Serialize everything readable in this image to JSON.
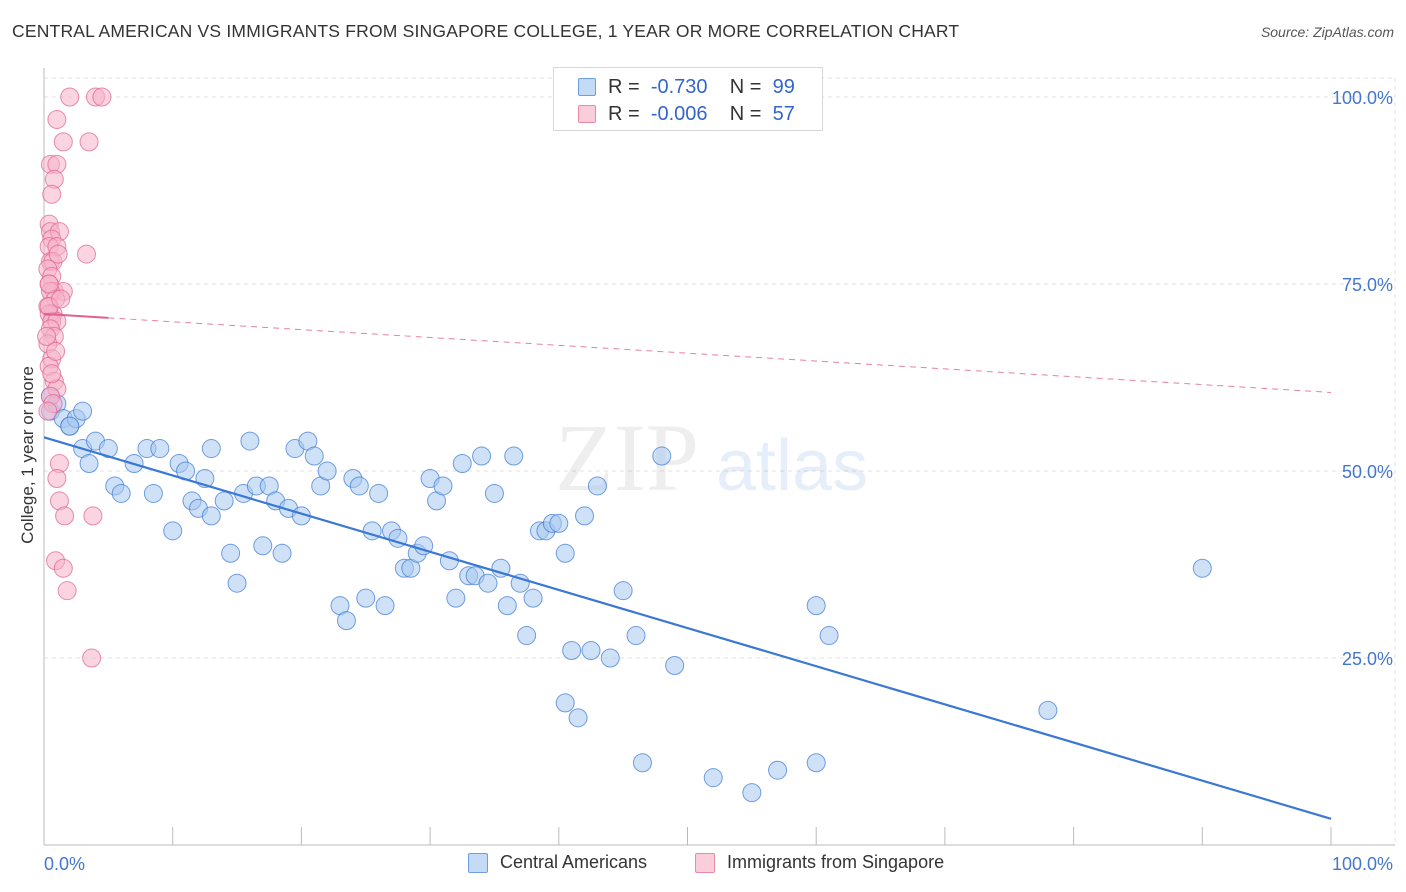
{
  "title": "CENTRAL AMERICAN VS IMMIGRANTS FROM SINGAPORE COLLEGE, 1 YEAR OR MORE CORRELATION CHART",
  "source": "Source: ZipAtlas.com",
  "watermark": {
    "zip": "ZIP",
    "atlas": "atlas"
  },
  "legend": {
    "rows": [
      {
        "r_label": "R =",
        "r_value": "-0.730",
        "n_label": "N =",
        "n_value": "99",
        "color": "#a8c8f0"
      },
      {
        "r_label": "R =",
        "r_value": "-0.006",
        "n_label": "N =",
        "n_value": "57",
        "color": "#f5b3c8"
      }
    ]
  },
  "bottom_legend": [
    "Central Americans",
    "Immigrants from Singapore"
  ],
  "chart_data": {
    "type": "scatter",
    "title": "CENTRAL AMERICAN VS IMMIGRANTS FROM SINGAPORE COLLEGE, 1 YEAR OR MORE CORRELATION CHART",
    "xlabel": "",
    "ylabel": "College, 1 year or more",
    "xlim": [
      0,
      100
    ],
    "ylim": [
      0,
      100
    ],
    "x_tick_labels": [
      "0.0%",
      "100.0%"
    ],
    "y_tick_labels": [
      "100.0%",
      "75.0%",
      "50.0%",
      "25.0%"
    ],
    "y_ticks": [
      100,
      75,
      50,
      25
    ],
    "grid": true,
    "legend_position": "top-center",
    "series": [
      {
        "name": "Central Americans",
        "color": "#3a78d4",
        "fill": "#a8c8f0",
        "r": -0.73,
        "n": 99,
        "trend": {
          "x": [
            0,
            100
          ],
          "y": [
            54.5,
            3.5
          ],
          "style": "solid"
        },
        "points": [
          [
            0.5,
            60
          ],
          [
            0.5,
            58
          ],
          [
            1,
            59
          ],
          [
            1.5,
            57
          ],
          [
            2,
            56
          ],
          [
            2.5,
            57
          ],
          [
            3,
            53
          ],
          [
            3.5,
            51
          ],
          [
            4,
            54
          ],
          [
            5,
            53
          ],
          [
            5.5,
            48
          ],
          [
            6,
            47
          ],
          [
            7,
            51
          ],
          [
            8,
            53
          ],
          [
            8.5,
            47
          ],
          [
            9,
            53
          ],
          [
            10,
            42
          ],
          [
            10.5,
            51
          ],
          [
            11,
            50
          ],
          [
            11.5,
            46
          ],
          [
            12,
            45
          ],
          [
            12.5,
            49
          ],
          [
            13,
            44
          ],
          [
            13,
            53
          ],
          [
            14,
            46
          ],
          [
            14.5,
            39
          ],
          [
            15,
            35
          ],
          [
            15.5,
            47
          ],
          [
            16,
            54
          ],
          [
            16.5,
            48
          ],
          [
            17,
            40
          ],
          [
            17.5,
            48
          ],
          [
            18,
            46
          ],
          [
            18.5,
            39
          ],
          [
            19,
            45
          ],
          [
            19.5,
            53
          ],
          [
            20,
            44
          ],
          [
            20.5,
            54
          ],
          [
            21,
            52
          ],
          [
            21.5,
            48
          ],
          [
            22,
            50
          ],
          [
            23,
            32
          ],
          [
            23.5,
            30
          ],
          [
            24,
            49
          ],
          [
            24.5,
            48
          ],
          [
            25,
            33
          ],
          [
            25.5,
            42
          ],
          [
            26,
            47
          ],
          [
            26.5,
            32
          ],
          [
            27,
            42
          ],
          [
            27.5,
            41
          ],
          [
            28,
            37
          ],
          [
            28.5,
            37
          ],
          [
            29,
            39
          ],
          [
            29.5,
            40
          ],
          [
            30,
            49
          ],
          [
            30.5,
            46
          ],
          [
            31,
            48
          ],
          [
            31.5,
            38
          ],
          [
            32,
            33
          ],
          [
            32.5,
            51
          ],
          [
            33,
            36
          ],
          [
            33.5,
            36
          ],
          [
            34,
            52
          ],
          [
            34.5,
            35
          ],
          [
            35,
            47
          ],
          [
            35.5,
            37
          ],
          [
            36,
            32
          ],
          [
            36.5,
            52
          ],
          [
            37,
            35
          ],
          [
            37.5,
            28
          ],
          [
            38,
            33
          ],
          [
            38.5,
            42
          ],
          [
            39,
            42
          ],
          [
            39.5,
            43
          ],
          [
            40,
            43
          ],
          [
            40.5,
            39
          ],
          [
            40.5,
            19
          ],
          [
            41,
            26
          ],
          [
            41.5,
            17
          ],
          [
            42,
            44
          ],
          [
            42.5,
            26
          ],
          [
            43,
            48
          ],
          [
            44,
            25
          ],
          [
            45,
            34
          ],
          [
            46,
            28
          ],
          [
            46.5,
            11
          ],
          [
            48,
            52
          ],
          [
            49,
            24
          ],
          [
            52,
            9
          ],
          [
            55,
            7
          ],
          [
            57,
            10
          ],
          [
            60,
            11
          ],
          [
            60,
            32
          ],
          [
            61,
            28
          ],
          [
            78,
            18
          ],
          [
            90,
            37
          ],
          [
            2,
            56
          ],
          [
            3,
            58
          ]
        ]
      },
      {
        "name": "Immigrants from Singapore",
        "color": "#e06090",
        "fill": "#f5b3c8",
        "r": -0.006,
        "n": 57,
        "trend": {
          "x": [
            0,
            100
          ],
          "y": [
            71,
            60.5
          ],
          "style": "dashed",
          "solid_until": 5
        },
        "points": [
          [
            2,
            100
          ],
          [
            4,
            100
          ],
          [
            4.5,
            100
          ],
          [
            1,
            97
          ],
          [
            1.5,
            94
          ],
          [
            3.5,
            94
          ],
          [
            0.5,
            91
          ],
          [
            1,
            91
          ],
          [
            0.8,
            89
          ],
          [
            0.6,
            87
          ],
          [
            0.4,
            83
          ],
          [
            0.5,
            82
          ],
          [
            1.2,
            82
          ],
          [
            0.6,
            81
          ],
          [
            0.4,
            80
          ],
          [
            1,
            80
          ],
          [
            0.5,
            78
          ],
          [
            0.7,
            78
          ],
          [
            1.1,
            79
          ],
          [
            3.3,
            79
          ],
          [
            0.3,
            77
          ],
          [
            0.6,
            76
          ],
          [
            0.4,
            75
          ],
          [
            0.8,
            74
          ],
          [
            1.5,
            74
          ],
          [
            0.5,
            74
          ],
          [
            0.9,
            73
          ],
          [
            0.3,
            72
          ],
          [
            0.7,
            71
          ],
          [
            0.4,
            71
          ],
          [
            0.6,
            70
          ],
          [
            1,
            70
          ],
          [
            0.5,
            69
          ],
          [
            0.8,
            68
          ],
          [
            0.3,
            67
          ],
          [
            0.6,
            65
          ],
          [
            0.4,
            64
          ],
          [
            0.8,
            62
          ],
          [
            1,
            61
          ],
          [
            0.5,
            60
          ],
          [
            0.7,
            59
          ],
          [
            0.3,
            58
          ],
          [
            1.2,
            51
          ],
          [
            1,
            49
          ],
          [
            1.2,
            46
          ],
          [
            1.6,
            44
          ],
          [
            3.8,
            44
          ],
          [
            0.9,
            38
          ],
          [
            1.5,
            37
          ],
          [
            1.8,
            34
          ],
          [
            3.7,
            25
          ],
          [
            0.4,
            72
          ],
          [
            0.2,
            68
          ],
          [
            0.9,
            66
          ],
          [
            1.3,
            73
          ],
          [
            0.6,
            63
          ],
          [
            0.4,
            75
          ]
        ]
      }
    ]
  }
}
